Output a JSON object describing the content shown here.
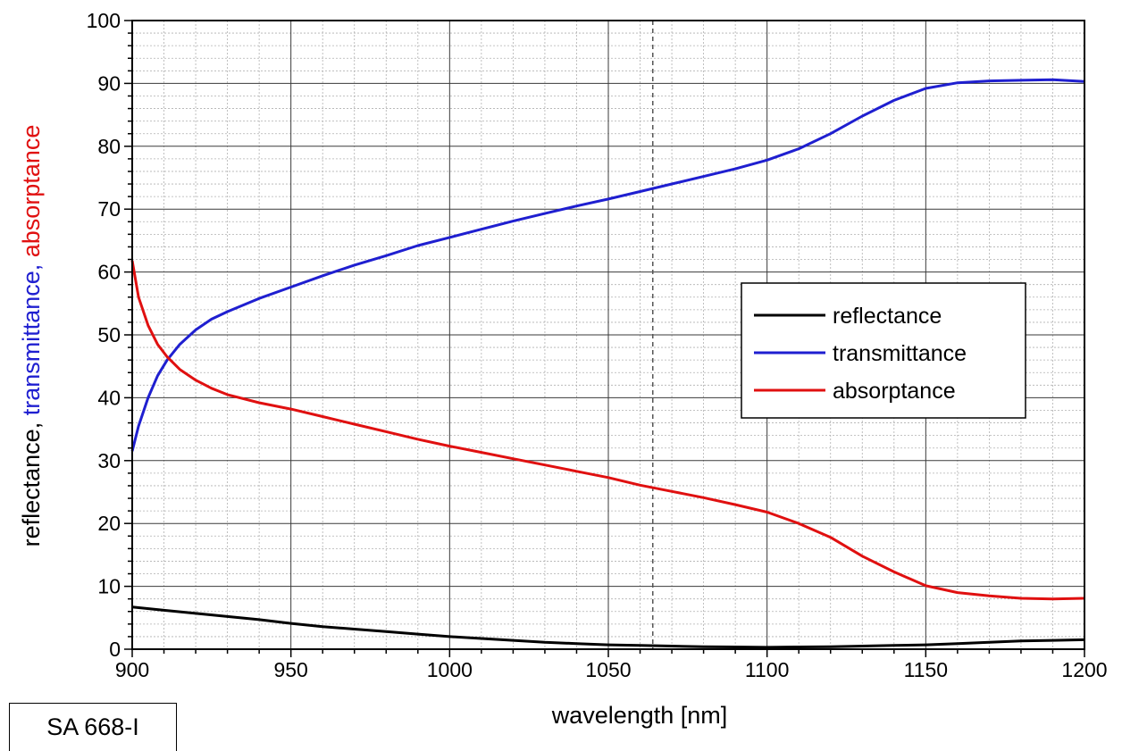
{
  "chart_data": {
    "type": "line",
    "xlabel": "wavelength [nm]",
    "ylabel_parts": [
      {
        "text": "reflectance, ",
        "color": "#000000"
      },
      {
        "text": "transmittance, ",
        "color": "#1f1fd0"
      },
      {
        "text": "absorptance",
        "color": "#e01010"
      }
    ],
    "xlim": [
      900,
      1200
    ],
    "ylim": [
      0,
      100
    ],
    "x_ticks": [
      900,
      950,
      1000,
      1050,
      1100,
      1150,
      1200
    ],
    "y_ticks": [
      0,
      10,
      20,
      30,
      40,
      50,
      60,
      70,
      80,
      90,
      100
    ],
    "grid": true,
    "minor_grid": true,
    "reference_line_x": 1064,
    "legend_position": "right",
    "series": [
      {
        "name": "reflectance",
        "color": "#000000",
        "x": [
          900,
          910,
          920,
          930,
          940,
          950,
          960,
          970,
          980,
          990,
          1000,
          1010,
          1020,
          1030,
          1040,
          1050,
          1060,
          1070,
          1080,
          1090,
          1100,
          1110,
          1120,
          1130,
          1140,
          1150,
          1160,
          1170,
          1180,
          1190,
          1200
        ],
        "values": [
          6.7,
          6.2,
          5.7,
          5.2,
          4.7,
          4.1,
          3.6,
          3.2,
          2.8,
          2.4,
          2.0,
          1.7,
          1.4,
          1.1,
          0.9,
          0.7,
          0.6,
          0.5,
          0.4,
          0.35,
          0.3,
          0.35,
          0.4,
          0.5,
          0.6,
          0.7,
          0.9,
          1.1,
          1.3,
          1.4,
          1.5
        ]
      },
      {
        "name": "transmittance",
        "color": "#1f1fd0",
        "x": [
          900,
          902,
          905,
          908,
          911,
          915,
          920,
          925,
          930,
          940,
          950,
          960,
          970,
          980,
          990,
          1000,
          1010,
          1020,
          1030,
          1040,
          1050,
          1060,
          1070,
          1080,
          1090,
          1100,
          1110,
          1120,
          1130,
          1140,
          1150,
          1160,
          1170,
          1180,
          1190,
          1200
        ],
        "values": [
          31.5,
          35.5,
          40.0,
          43.5,
          46.0,
          48.5,
          50.8,
          52.5,
          53.7,
          55.8,
          57.6,
          59.4,
          61.1,
          62.6,
          64.2,
          65.5,
          66.8,
          68.1,
          69.3,
          70.5,
          71.6,
          72.8,
          74.0,
          75.2,
          76.4,
          77.8,
          79.6,
          82.0,
          84.8,
          87.3,
          89.2,
          90.1,
          90.4,
          90.5,
          90.6,
          90.3
        ]
      },
      {
        "name": "absorptance",
        "color": "#e01010",
        "x": [
          900,
          902,
          905,
          908,
          911,
          915,
          920,
          925,
          930,
          940,
          950,
          960,
          970,
          980,
          990,
          1000,
          1010,
          1020,
          1030,
          1040,
          1050,
          1060,
          1070,
          1080,
          1090,
          1100,
          1110,
          1120,
          1130,
          1140,
          1150,
          1160,
          1170,
          1180,
          1190,
          1200
        ],
        "values": [
          61.8,
          56.0,
          51.5,
          48.5,
          46.5,
          44.5,
          42.8,
          41.5,
          40.5,
          39.2,
          38.2,
          37.0,
          35.8,
          34.6,
          33.4,
          32.3,
          31.3,
          30.3,
          29.3,
          28.3,
          27.3,
          26.1,
          25.1,
          24.1,
          23.0,
          21.8,
          20.0,
          17.8,
          14.8,
          12.3,
          10.1,
          9.0,
          8.5,
          8.1,
          8.0,
          8.1
        ]
      }
    ]
  },
  "sample_label": "SA 668-I"
}
